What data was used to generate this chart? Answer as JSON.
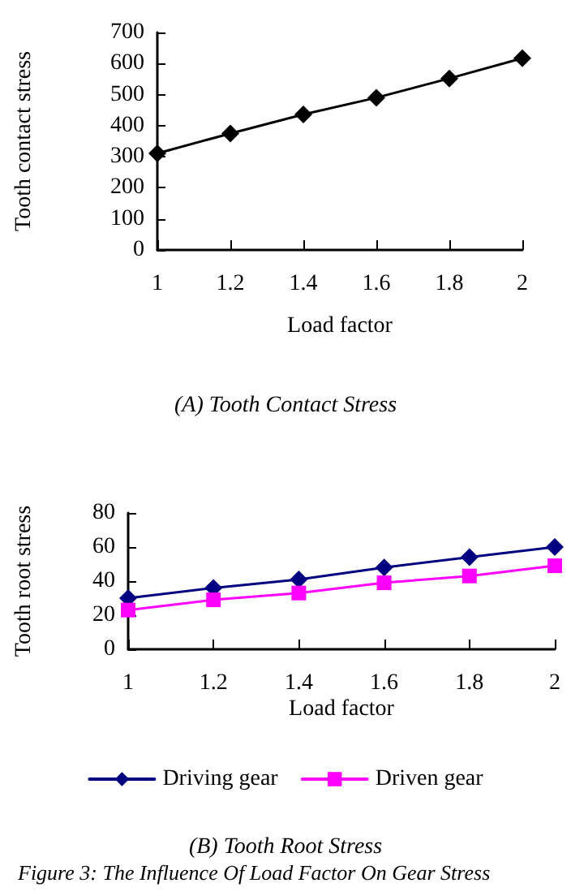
{
  "chart_data": [
    {
      "type": "line",
      "title": "(A) Tooth Contact Stress",
      "xlabel": "Load factor",
      "ylabel": "Tooth contact stress",
      "x": [
        1,
        1.2,
        1.4,
        1.6,
        1.8,
        2
      ],
      "series": [
        {
          "color": "#000000",
          "marker": "diamond",
          "values": [
            311,
            375,
            436,
            490,
            552,
            617
          ]
        }
      ],
      "xlim": [
        1,
        2
      ],
      "xticks": [
        1,
        1.2,
        1.4,
        1.6,
        1.8,
        2
      ],
      "ylim": [
        0,
        700
      ],
      "yticks": [
        0,
        100,
        200,
        300,
        400,
        500,
        600,
        700
      ],
      "grid": false,
      "legend": false,
      "line_style": "solid"
    },
    {
      "type": "line",
      "title": "(B) Tooth Root Stress",
      "xlabel": "Load factor",
      "ylabel": "Tooth root stress",
      "x": [
        1,
        1.2,
        1.4,
        1.6,
        1.8,
        2
      ],
      "series": [
        {
          "name": "Driving gear",
          "color": "#000080",
          "marker": "diamond",
          "values": [
            30,
            36,
            41,
            48,
            54,
            60
          ]
        },
        {
          "name": "Driven gear",
          "color": "#ff00ff",
          "marker": "square",
          "values": [
            23,
            29,
            33,
            39,
            43,
            49
          ]
        }
      ],
      "xlim": [
        1,
        2
      ],
      "xticks": [
        1,
        1.2,
        1.4,
        1.6,
        1.8,
        2
      ],
      "ylim": [
        0,
        80
      ],
      "yticks": [
        0,
        20,
        40,
        60,
        80
      ],
      "grid": false,
      "legend": "bottom",
      "line_style": "solid",
      "annotations": [
        "Figure 3: The Influence Of Load Factor On Gear Stress"
      ]
    }
  ]
}
